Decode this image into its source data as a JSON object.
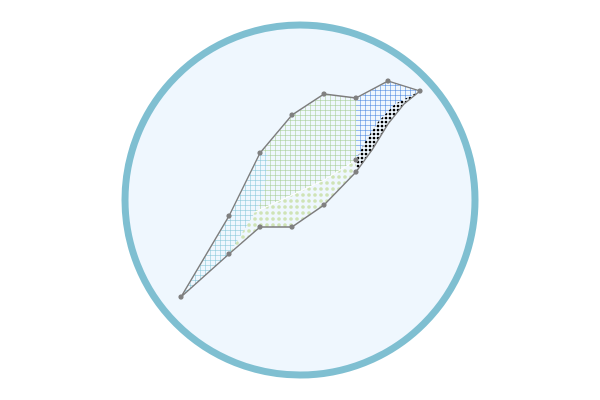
{
  "badge": {
    "background_fill": "#eff7fe",
    "ring_color": "#7fbfd1",
    "outline_color": "#7d7d7d",
    "vertex_color": "#808080",
    "vertex_dots_visible": true,
    "regions": [
      {
        "name": "light-blue-grid-region",
        "pattern": "grid",
        "color": "#7cc3d6"
      },
      {
        "name": "green-grid-region",
        "pattern": "grid",
        "color": "#9fc98a"
      },
      {
        "name": "blue-grid-region",
        "pattern": "grid",
        "color": "#3b7ddd"
      },
      {
        "name": "pale-dotted-region",
        "pattern": "dots",
        "color": "#cfe3b6"
      },
      {
        "name": "black-dotted-region",
        "pattern": "dots",
        "color": "#000000"
      }
    ]
  }
}
